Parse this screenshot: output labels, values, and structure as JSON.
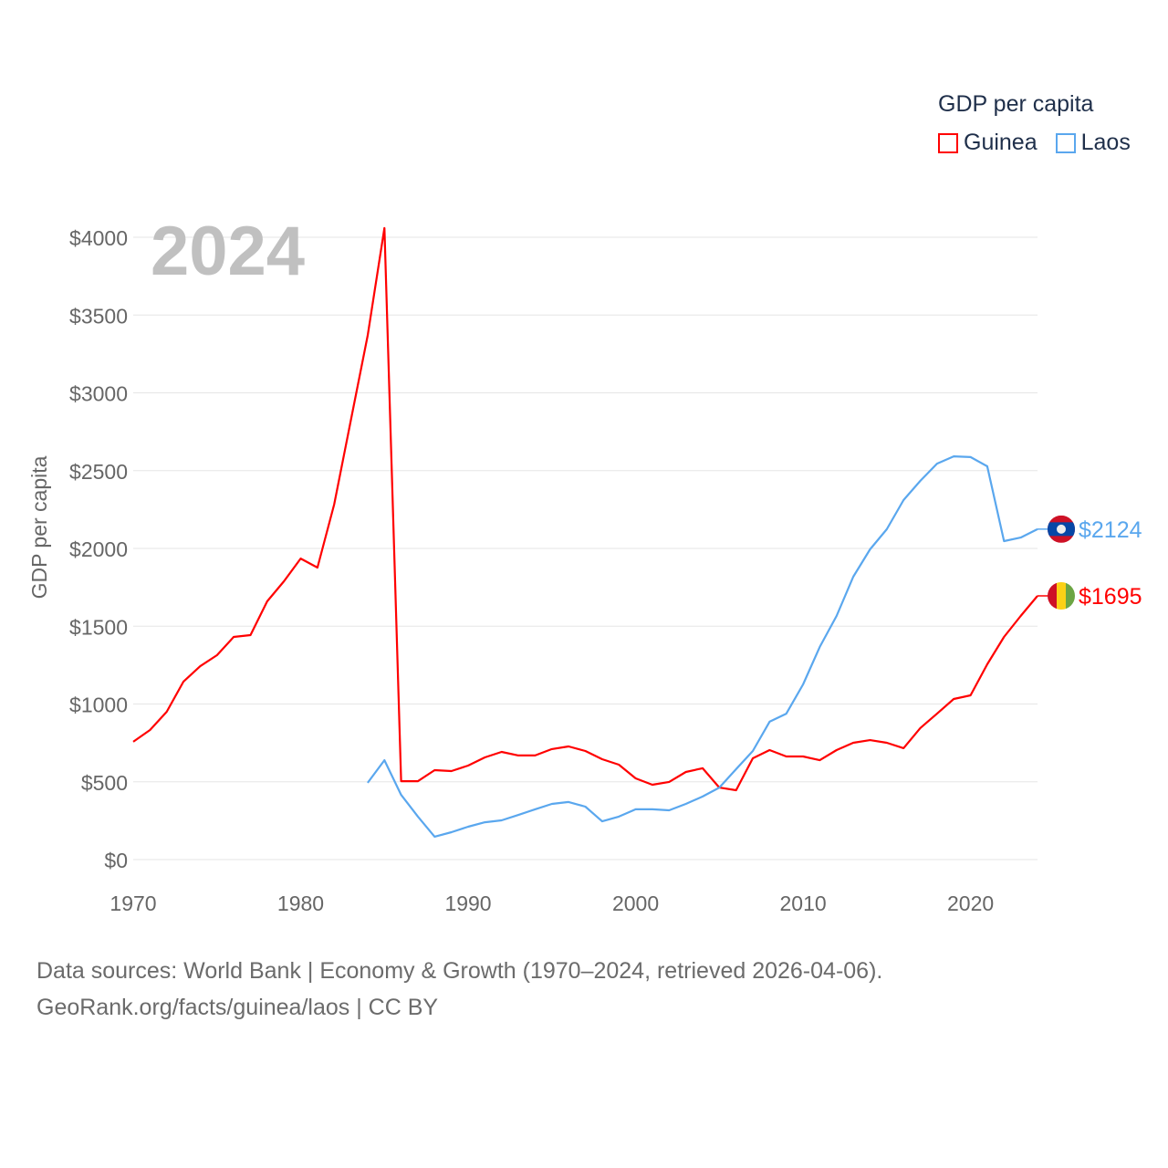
{
  "chart_data": {
    "type": "line",
    "title": "GDP per capita",
    "year_label": "2024",
    "xlabel": "",
    "ylabel": "GDP per capita",
    "xlim": [
      1970,
      2024
    ],
    "ylim": [
      0,
      4000
    ],
    "x_ticks": [
      1970,
      1980,
      1990,
      2000,
      2010,
      2020
    ],
    "y_ticks": [
      0,
      500,
      1000,
      1500,
      2000,
      2500,
      3000,
      3500,
      4000
    ],
    "y_tick_labels": [
      "$0",
      "$500",
      "$1000",
      "$1500",
      "$2000",
      "$2500",
      "$3000",
      "$3500",
      "$4000"
    ],
    "grid": true,
    "legend_position": "top-right",
    "series": [
      {
        "name": "Guinea",
        "color": "#ff0000",
        "end_label": "$1695",
        "start_year": 1970,
        "values": [
          757,
          833,
          950,
          1144,
          1243,
          1314,
          1431,
          1443,
          1660,
          1789,
          1935,
          1877,
          2282,
          2827,
          3367,
          4059,
          504,
          504,
          575,
          569,
          604,
          657,
          692,
          669,
          669,
          710,
          727,
          698,
          645,
          610,
          522,
          481,
          499,
          563,
          587,
          463,
          446,
          651,
          704,
          663,
          663,
          639,
          704,
          751,
          768,
          751,
          716,
          845,
          938,
          1032,
          1056,
          1255,
          1431,
          1566,
          1695
        ]
      },
      {
        "name": "Laos",
        "color": "#5aa7ee",
        "end_label": "$2124",
        "start_year": 1984,
        "values": [
          493,
          639,
          416,
          276,
          147,
          176,
          211,
          240,
          252,
          287,
          323,
          358,
          370,
          340,
          246,
          276,
          323,
          323,
          317,
          358,
          405,
          463,
          581,
          698,
          886,
          938,
          1126,
          1367,
          1566,
          1818,
          1994,
          2123,
          2311,
          2434,
          2545,
          2592,
          2587,
          2528,
          2047,
          2070,
          2124
        ]
      }
    ]
  },
  "footer": {
    "line1": "Data sources: World Bank | Economy & Growth (1970–2024, retrieved 2026-04-06).",
    "line2": "GeoRank.org/facts/guinea/laos | CC BY"
  }
}
